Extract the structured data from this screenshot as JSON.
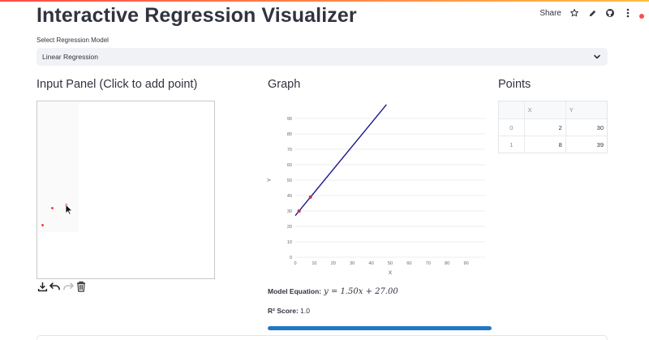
{
  "app": {
    "title": "Interactive Regression Visualizer",
    "share_label": "Share"
  },
  "model_select": {
    "label": "Select Regression Model",
    "value": "Linear Regression"
  },
  "input_panel": {
    "title": "Input Panel (Click to add point)"
  },
  "graph": {
    "title": "Graph"
  },
  "points_panel": {
    "title": "Points",
    "columns": [
      "",
      "X",
      "Y"
    ],
    "rows": [
      {
        "index": "0",
        "x": "2",
        "y": "30"
      },
      {
        "index": "1",
        "x": "8",
        "y": "39"
      }
    ]
  },
  "chart_data": {
    "type": "scatter",
    "xlabel": "X",
    "ylabel": "Y",
    "xlim": [
      0,
      100
    ],
    "ylim": [
      0,
      100
    ],
    "xticks": [
      0,
      10,
      20,
      30,
      40,
      50,
      60,
      70,
      80,
      90
    ],
    "yticks": [
      0,
      10,
      20,
      30,
      40,
      50,
      60,
      70,
      80,
      90
    ],
    "grid": true,
    "points": [
      {
        "x": 2,
        "y": 30
      },
      {
        "x": 8,
        "y": 39
      }
    ],
    "fit_line": {
      "slope": 1.5,
      "intercept": 27,
      "x_range": [
        0,
        48
      ]
    },
    "line_color": "#1a1a8c",
    "point_color": "#c0304c"
  },
  "results": {
    "equation_label": "Model Equation:",
    "equation": "y = 1.50x + 27.00",
    "r2_label": "R² Score:",
    "r2_value": "1.0",
    "progress": 1.0
  },
  "icons": [
    "star-icon",
    "pencil-icon",
    "github-icon",
    "more-vert-icon",
    "download-icon",
    "undo-icon",
    "redo-icon",
    "trash-icon",
    "chevron-down-icon"
  ],
  "colors": {
    "accent": "#ff4b4b",
    "progress": "#1f77c7"
  }
}
